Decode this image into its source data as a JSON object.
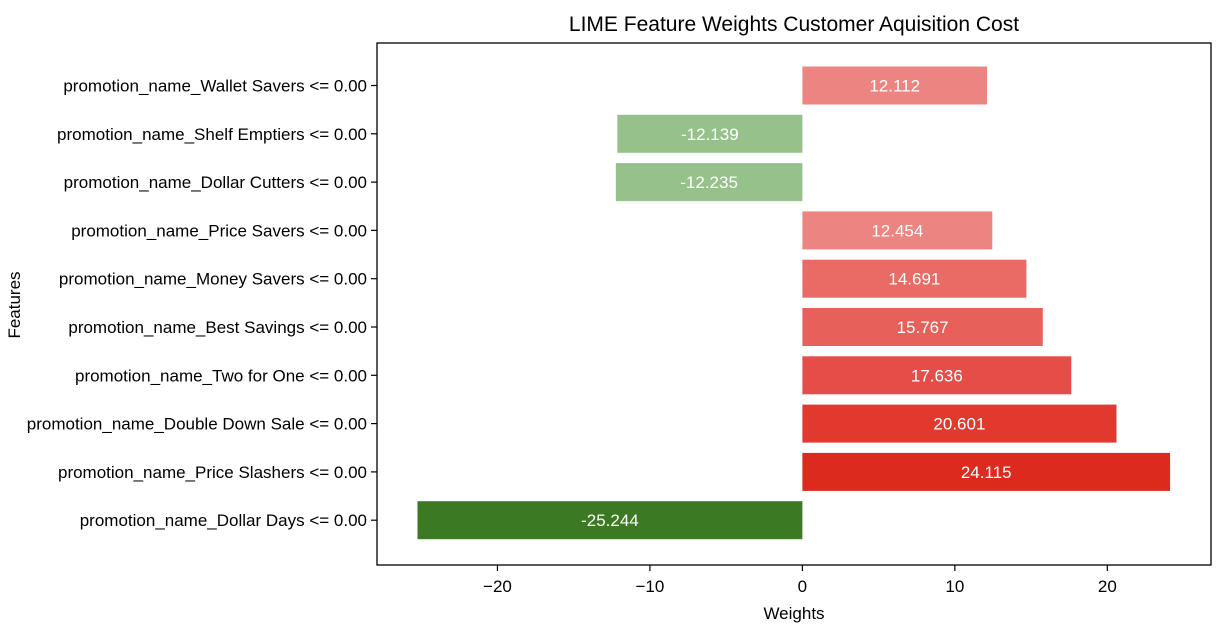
{
  "chart_data": {
    "type": "bar",
    "orientation": "horizontal",
    "title": "LIME Feature Weights Customer Aquisition Cost",
    "xlabel": "Weights",
    "ylabel": "Features",
    "xlim": [
      -27.9,
      26.8
    ],
    "xticks": [
      -20,
      -10,
      0,
      10,
      20
    ],
    "xtick_labels": [
      "−20",
      "−10",
      "0",
      "10",
      "20"
    ],
    "grid": false,
    "legend": "none",
    "categories": [
      "promotion_name_Wallet Savers <= 0.00",
      "promotion_name_Shelf Emptiers <= 0.00",
      "promotion_name_Dollar Cutters <= 0.00",
      "promotion_name_Price Savers <= 0.00",
      "promotion_name_Money Savers <= 0.00",
      "promotion_name_Best Savings <= 0.00",
      "promotion_name_Two for One <= 0.00",
      "promotion_name_Double Down Sale <= 0.00",
      "promotion_name_Price Slashers <= 0.00",
      "promotion_name_Dollar Days <= 0.00"
    ],
    "values": [
      12.112,
      -12.139,
      -12.235,
      12.454,
      14.691,
      15.767,
      17.636,
      20.601,
      24.115,
      -25.244
    ],
    "value_labels": [
      "12.112",
      "-12.139",
      "-12.235",
      "12.454",
      "14.691",
      "15.767",
      "17.636",
      "20.601",
      "24.115",
      "-25.244"
    ],
    "colors": [
      "#ec8582",
      "#96c18b",
      "#96c18b",
      "#ec8582",
      "#ea6b66",
      "#e8605a",
      "#e54d48",
      "#e2392f",
      "#dc2a1e",
      "#3b7a22"
    ]
  }
}
